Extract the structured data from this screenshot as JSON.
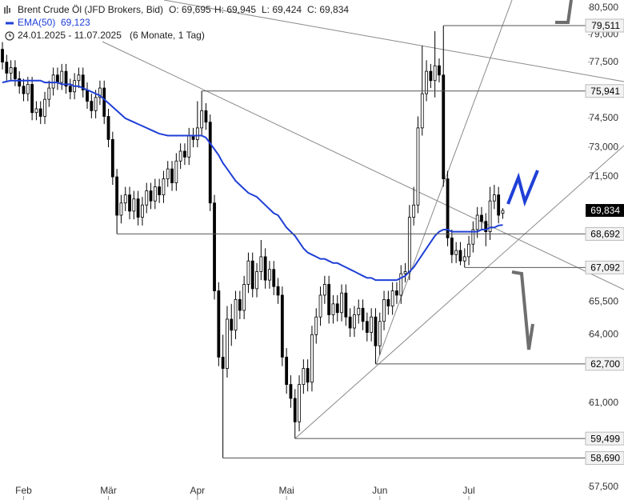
{
  "header": {
    "title": "Brent Crude Öl (JFD Brokers, Bid)",
    "ohlc": [
      "O: 69,695",
      "H: 69,945",
      "L: 69,424",
      "C: 69,834"
    ],
    "ema": {
      "name": "EMA(50)",
      "label": "69,123"
    },
    "range": "24.01.2025 - 11.07.2025",
    "period": "(6 Monate, 1 Tag)"
  },
  "chart_data": {
    "type": "candlestick",
    "log": true,
    "xlim": [
      -0.57,
      138.1
    ],
    "xticks": [
      {
        "value": 5,
        "label": "Feb"
      },
      {
        "value": 25,
        "label": "Mär"
      },
      {
        "value": 46,
        "label": "Apr"
      },
      {
        "value": 67,
        "label": "Mai"
      },
      {
        "value": 89,
        "label": "Jun"
      },
      {
        "value": 110,
        "label": "Jul"
      }
    ],
    "ylim": [
      57.5,
      80.5
    ],
    "yticks": [
      {
        "value": 80.5,
        "label": "80,500"
      },
      {
        "value": 79,
        "label": "79,000"
      },
      {
        "value": 77.5,
        "label": "77,500"
      },
      {
        "value": 74.5,
        "label": "74,500"
      },
      {
        "value": 73,
        "label": "73,000"
      },
      {
        "value": 71.5,
        "label": "71,500"
      },
      {
        "value": 65.5,
        "label": "65,500"
      },
      {
        "value": 64,
        "label": "64,000"
      },
      {
        "value": 61,
        "label": "61,000"
      },
      {
        "value": 57.5,
        "label": "57,500"
      }
    ],
    "up_color": "#ffffff",
    "down_color": "#000000",
    "candles": {
      "open": [
        78.2,
        77.5,
        76.9,
        77.2,
        76.6,
        76.2,
        75.8,
        76.3,
        74.8,
        75.0,
        74.6,
        75.5,
        76.1,
        76.8,
        76.4,
        77.0,
        76.2,
        75.9,
        76.5,
        76.8,
        76.0,
        75.4,
        74.9,
        75.6,
        76.1,
        74.6,
        73.4,
        71.5,
        69.6,
        70.2,
        70.6,
        69.8,
        70.4,
        69.5,
        70.1,
        70.8,
        70.3,
        71.0,
        70.6,
        71.4,
        71.9,
        71.2,
        72.3,
        72.8,
        72.5,
        73.6,
        73.4,
        74.0,
        74.9,
        74.3,
        70.2,
        66.0,
        63.0,
        62.5,
        64.7,
        64.2,
        65.6,
        65.1,
        66.3,
        67.4,
        66.1,
        66.9,
        67.6,
        66.5,
        67.0,
        66.2,
        65.8,
        63.0,
        61.8,
        61.2,
        60.2,
        61.8,
        62.5,
        61.9,
        64.0,
        64.8,
        65.8,
        66.3,
        64.9,
        65.4,
        65.0,
        65.9,
        64.8,
        64.3,
        64.9,
        65.2,
        64.6,
        64.1,
        64.8,
        63.5,
        64.6,
        65.6,
        65.3,
        66.0,
        65.8,
        66.8,
        66.9,
        69.5,
        70.1,
        74.0,
        75.8,
        77.0,
        76.5,
        77.3,
        76.8,
        71.4,
        68.5,
        67.7,
        67.9,
        67.4,
        67.6,
        68.2,
        68.9,
        69.6,
        69.3,
        68.8,
        70.3,
        70.6,
        69.695
      ],
      "high": [
        78.6,
        77.9,
        77.6,
        77.6,
        77.0,
        76.6,
        76.7,
        76.7,
        75.4,
        75.4,
        75.9,
        76.5,
        77.2,
        77.2,
        77.4,
        77.4,
        76.6,
        76.9,
        77.2,
        77.2,
        76.4,
        75.8,
        76.0,
        76.5,
        76.5,
        75.0,
        73.8,
        71.9,
        70.6,
        71.0,
        71.0,
        70.8,
        70.8,
        70.5,
        71.2,
        71.2,
        71.4,
        71.4,
        71.8,
        72.3,
        72.3,
        72.7,
        73.2,
        73.2,
        74.0,
        74.0,
        75.4,
        75.941,
        75.3,
        74.7,
        70.6,
        66.4,
        64.0,
        65.3,
        65.4,
        66.0,
        66.0,
        66.7,
        67.8,
        67.8,
        67.3,
        68.4,
        68.0,
        67.4,
        67.4,
        66.6,
        66.2,
        63.4,
        62.2,
        61.6,
        62.2,
        62.9,
        62.9,
        64.4,
        65.2,
        66.2,
        66.7,
        66.7,
        65.8,
        65.8,
        66.3,
        66.3,
        65.2,
        65.3,
        65.6,
        65.6,
        65.0,
        65.2,
        65.2,
        65.0,
        66.0,
        66.0,
        66.4,
        66.4,
        67.2,
        67.3,
        70.1,
        71.0,
        74.6,
        78.4,
        77.6,
        77.4,
        79.2,
        77.7,
        79.511,
        71.8,
        68.9,
        68.3,
        68.3,
        68.0,
        68.6,
        69.3,
        70.0,
        70.0,
        69.7,
        71.0,
        71.1,
        71.0,
        69.945
      ],
      "low": [
        77.1,
        76.5,
        76.5,
        76.2,
        75.8,
        75.4,
        75.4,
        74.4,
        74.4,
        74.2,
        74.2,
        75.1,
        75.7,
        76.0,
        76.0,
        75.8,
        75.5,
        75.5,
        76.1,
        75.6,
        75.0,
        74.5,
        74.5,
        75.2,
        74.2,
        73.0,
        71.1,
        68.692,
        69.2,
        69.8,
        69.4,
        69.4,
        69.1,
        69.1,
        69.7,
        69.9,
        69.9,
        70.2,
        70.2,
        71.0,
        70.8,
        70.8,
        71.9,
        72.1,
        72.1,
        73.0,
        73.0,
        73.6,
        73.9,
        69.8,
        65.6,
        62.6,
        58.69,
        62.1,
        63.5,
        63.8,
        64.7,
        64.7,
        65.9,
        65.7,
        65.7,
        66.5,
        66.1,
        66.1,
        65.8,
        65.4,
        62.6,
        61.4,
        60.8,
        59.499,
        59.8,
        61.4,
        61.5,
        61.5,
        63.6,
        64.4,
        65.4,
        64.5,
        64.5,
        64.6,
        64.6,
        64.4,
        63.9,
        63.9,
        64.5,
        64.2,
        63.7,
        63.7,
        62.7,
        63.1,
        64.2,
        64.9,
        64.9,
        65.4,
        65.4,
        66.4,
        66.5,
        69.1,
        69.7,
        73.6,
        75.4,
        76.1,
        75.6,
        76.4,
        71.0,
        68.1,
        67.3,
        67.3,
        67.2,
        67.092,
        67.2,
        67.8,
        68.5,
        68.9,
        68.1,
        68.4,
        69.9,
        69.2,
        69.424
      ],
      "close": [
        77.5,
        76.9,
        77.2,
        76.6,
        76.2,
        75.8,
        76.3,
        74.8,
        75.0,
        74.6,
        75.5,
        76.1,
        76.8,
        76.4,
        77.0,
        76.2,
        75.9,
        76.5,
        76.8,
        76.0,
        75.4,
        74.9,
        75.6,
        76.1,
        74.6,
        73.4,
        71.5,
        69.6,
        70.2,
        70.6,
        69.8,
        70.4,
        69.5,
        70.1,
        70.8,
        70.3,
        71.0,
        70.6,
        71.4,
        71.9,
        71.2,
        72.3,
        72.8,
        72.5,
        73.6,
        73.4,
        74.0,
        74.9,
        74.3,
        70.2,
        66.0,
        63.0,
        62.5,
        64.7,
        64.2,
        65.6,
        65.1,
        66.3,
        67.4,
        66.1,
        66.9,
        67.6,
        66.5,
        67.0,
        66.2,
        65.8,
        63.0,
        61.8,
        61.2,
        60.2,
        61.8,
        62.5,
        61.9,
        64.0,
        64.8,
        65.8,
        66.3,
        64.9,
        65.4,
        65.0,
        65.9,
        64.8,
        64.3,
        64.9,
        65.2,
        64.6,
        64.1,
        64.8,
        63.5,
        64.6,
        65.6,
        65.3,
        66.0,
        65.8,
        66.8,
        66.9,
        69.5,
        70.1,
        74.0,
        75.8,
        77.0,
        76.5,
        77.3,
        76.8,
        71.4,
        68.5,
        67.7,
        67.9,
        67.4,
        67.6,
        68.2,
        68.9,
        69.6,
        69.3,
        68.8,
        70.3,
        70.6,
        69.6,
        69.834
      ]
    },
    "ema": {
      "color": "#1f3fd6",
      "values": [
        76.4,
        76.45,
        76.5,
        76.5,
        76.5,
        76.5,
        76.5,
        76.5,
        76.5,
        76.5,
        76.4,
        76.4,
        76.4,
        76.4,
        76.3,
        76.3,
        76.3,
        76.2,
        76.2,
        76.1,
        76.0,
        75.9,
        75.8,
        75.7,
        75.5,
        75.3,
        75.1,
        74.9,
        74.7,
        74.5,
        74.4,
        74.3,
        74.2,
        74.1,
        74.0,
        73.9,
        73.8,
        73.7,
        73.65,
        73.6,
        73.6,
        73.6,
        73.6,
        73.6,
        73.6,
        73.6,
        73.6,
        73.6,
        73.5,
        73.2,
        72.9,
        72.6,
        72.2,
        71.9,
        71.6,
        71.3,
        71.1,
        70.9,
        70.7,
        70.6,
        70.5,
        70.3,
        70.1,
        69.9,
        69.7,
        69.6,
        69.3,
        69.0,
        68.8,
        68.6,
        68.3,
        68.0,
        67.8,
        67.7,
        67.6,
        67.5,
        67.5,
        67.4,
        67.3,
        67.3,
        67.2,
        67.1,
        67.0,
        66.9,
        66.8,
        66.7,
        66.6,
        66.6,
        66.5,
        66.5,
        66.5,
        66.5,
        66.5,
        66.5,
        66.6,
        66.7,
        66.9,
        67.1,
        67.4,
        67.7,
        68.0,
        68.3,
        68.6,
        68.8,
        68.9,
        68.9,
        68.8,
        68.8,
        68.8,
        68.8,
        68.8,
        68.8,
        68.8,
        68.9,
        68.9,
        69.0,
        69.0,
        69.1,
        69.123
      ]
    },
    "levels": [
      {
        "value": 79.511,
        "label": "79,511",
        "x": 104
      },
      {
        "value": 75.941,
        "label": "75,941",
        "x": 47
      },
      {
        "value": 68.692,
        "label": "68,692",
        "x": 27
      },
      {
        "value": 67.092,
        "label": "67,092",
        "x": 109
      },
      {
        "value": 62.7,
        "label": "62,700",
        "x": 88
      },
      {
        "value": 59.499,
        "label": "59,499",
        "x": 69
      },
      {
        "value": 58.69,
        "label": "58,690",
        "x": 52
      }
    ],
    "last": {
      "value": 69.834,
      "label": "69,834"
    }
  }
}
